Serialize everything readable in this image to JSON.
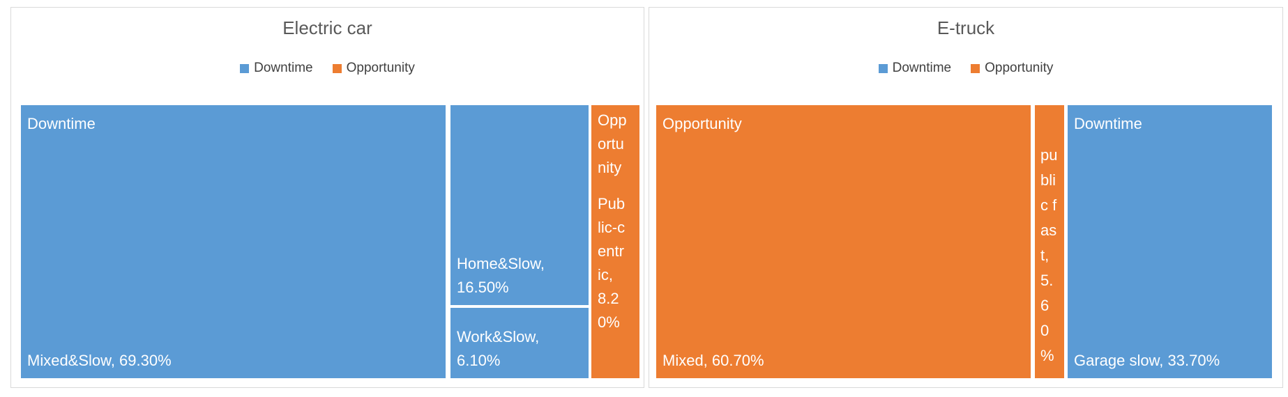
{
  "chart_data": [
    {
      "type": "treemap",
      "title": "Electric car",
      "legend": [
        "Downtime",
        "Opportunity"
      ],
      "legend_position": "top",
      "series": [
        {
          "name": "Downtime",
          "color": "#5B9BD5",
          "points": [
            {
              "label": "Mixed&Slow",
              "value": 69.3
            },
            {
              "label": "Home&Slow",
              "value": 16.5
            },
            {
              "label": "Work&Slow",
              "value": 6.1
            }
          ]
        },
        {
          "name": "Opportunity",
          "color": "#ED7D31",
          "points": [
            {
              "label": "Public-centric",
              "value": 8.2
            }
          ]
        }
      ]
    },
    {
      "type": "treemap",
      "title": "E-truck",
      "legend": [
        "Downtime",
        "Opportunity"
      ],
      "legend_position": "top",
      "series": [
        {
          "name": "Opportunity",
          "color": "#ED7D31",
          "points": [
            {
              "label": "Mixed",
              "value": 60.7
            },
            {
              "label": "public fast",
              "value": 5.6
            }
          ]
        },
        {
          "name": "Downtime",
          "color": "#5B9BD5",
          "points": [
            {
              "label": "Garage slow",
              "value": 33.7
            }
          ]
        }
      ]
    }
  ],
  "charts": [
    {
      "title": "Electric car",
      "legend": [
        "Downtime",
        "Opportunity"
      ],
      "blocks": {
        "mixed_slow": {
          "header": "Downtime",
          "label": "Mixed&Slow, 69.30%"
        },
        "home_slow": {
          "label": "Home&Slow, 16.50%"
        },
        "work_slow": {
          "label": "Work&Slow, 6.10%"
        },
        "public_centric": {
          "header": "Opportunity",
          "label": "Public-centric, 8.20%"
        }
      }
    },
    {
      "title": "E-truck",
      "legend": [
        "Downtime",
        "Opportunity"
      ],
      "blocks": {
        "mixed": {
          "header": "Opportunity",
          "label": "Mixed, 60.70%"
        },
        "public_fast": {
          "label": "public fast, 5.60%"
        },
        "garage_slow": {
          "header": "Downtime",
          "label": "Garage slow, 33.70%"
        }
      }
    }
  ],
  "colors": {
    "downtime_series": "#5B9BD5",
    "opportunity_series": "#ED7D31",
    "title_text": "#595959",
    "legend_text": "#404040",
    "block_label_text": "#FFFFFF",
    "panel_border": "#D9D9D9"
  }
}
